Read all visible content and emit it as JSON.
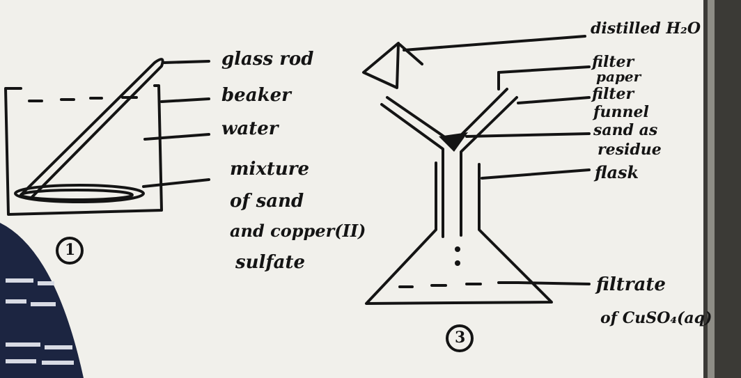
{
  "diagram1": {
    "number": "1",
    "labels": {
      "glass_rod": "glass rod",
      "beaker": "beaker",
      "water": "water",
      "mixture_line1": "mixture",
      "mixture_line2": "of sand",
      "mixture_line3": "and copper(II)",
      "mixture_line4": "sulfate"
    }
  },
  "diagram2": {
    "number": "3",
    "labels": {
      "distilled": "distilled H₂O",
      "filter_paper_1": "filter",
      "filter_paper_2": "paper",
      "filter_funnel_1": "filter",
      "filter_funnel_2": "funnel",
      "sand_residue_1": "sand as",
      "sand_residue_2": "residue",
      "flask": "flask",
      "filtrate_1": "filtrate",
      "filtrate_2": "of CuSO₄(aq)"
    }
  },
  "colors": {
    "board": "#f1f0eb",
    "ink": "#141414",
    "cloth": "#1c2541"
  }
}
